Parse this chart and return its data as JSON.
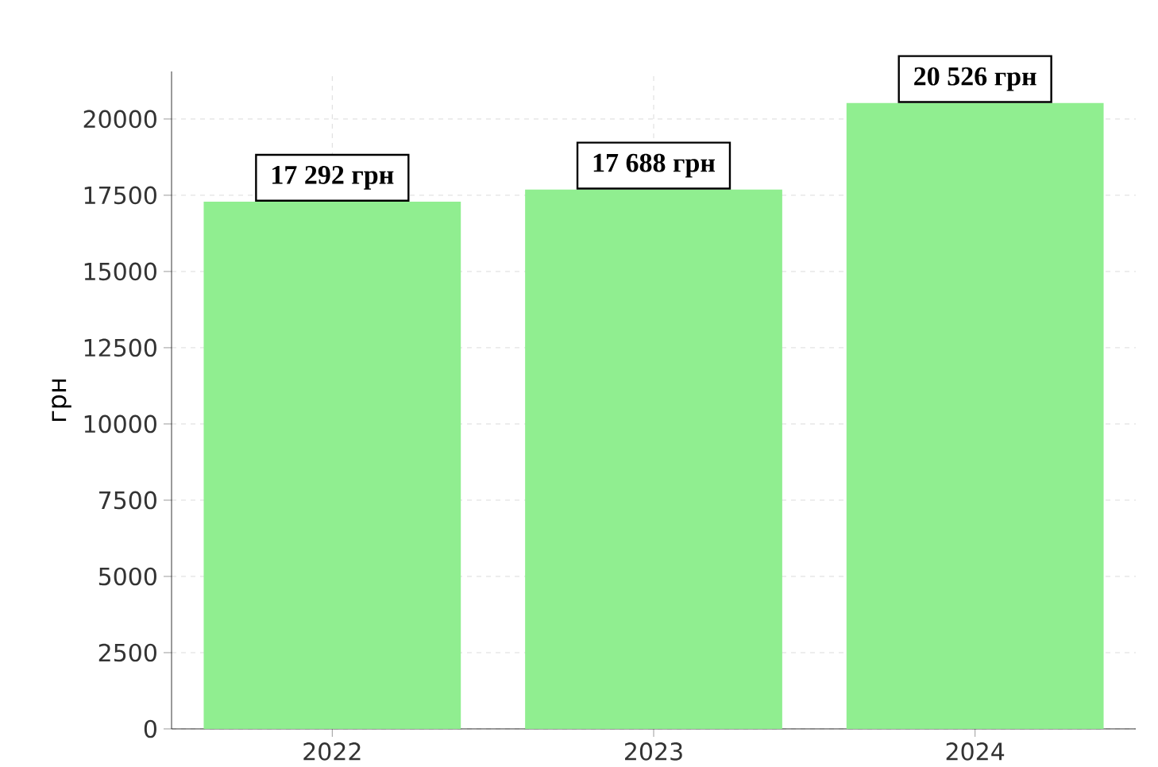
{
  "chart_data": {
    "type": "bar",
    "ylabel": "грн",
    "categories": [
      "2022",
      "2023",
      "2024"
    ],
    "values": [
      17292,
      17688,
      20526
    ],
    "value_labels": [
      "17 292 грн",
      "17 688 грн",
      "20 526 грн"
    ],
    "color": "#90ee90",
    "ylim": [
      0,
      21560
    ],
    "yticks": [
      0,
      2500,
      5000,
      7500,
      10000,
      12500,
      15000,
      17500,
      20000
    ],
    "grid": true
  }
}
